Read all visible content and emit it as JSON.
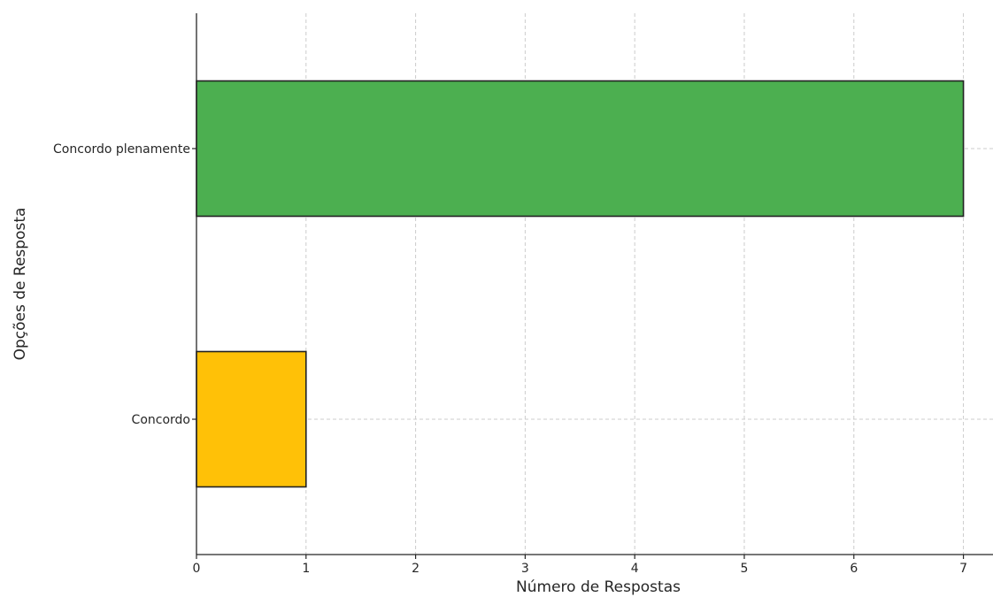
{
  "chart_data": {
    "type": "bar",
    "orientation": "horizontal",
    "categories": [
      "Concordo",
      "Concordo plenamente"
    ],
    "values": [
      1,
      7
    ],
    "colors": [
      "#ffc107",
      "#4caf50"
    ],
    "xlabel": "Número de Respostas",
    "ylabel": "Opções de Resposta",
    "xlim": [
      0,
      7.27
    ],
    "xticks": [
      0,
      1,
      2,
      3,
      4,
      5,
      6,
      7
    ],
    "grid": true,
    "legend": "none"
  }
}
